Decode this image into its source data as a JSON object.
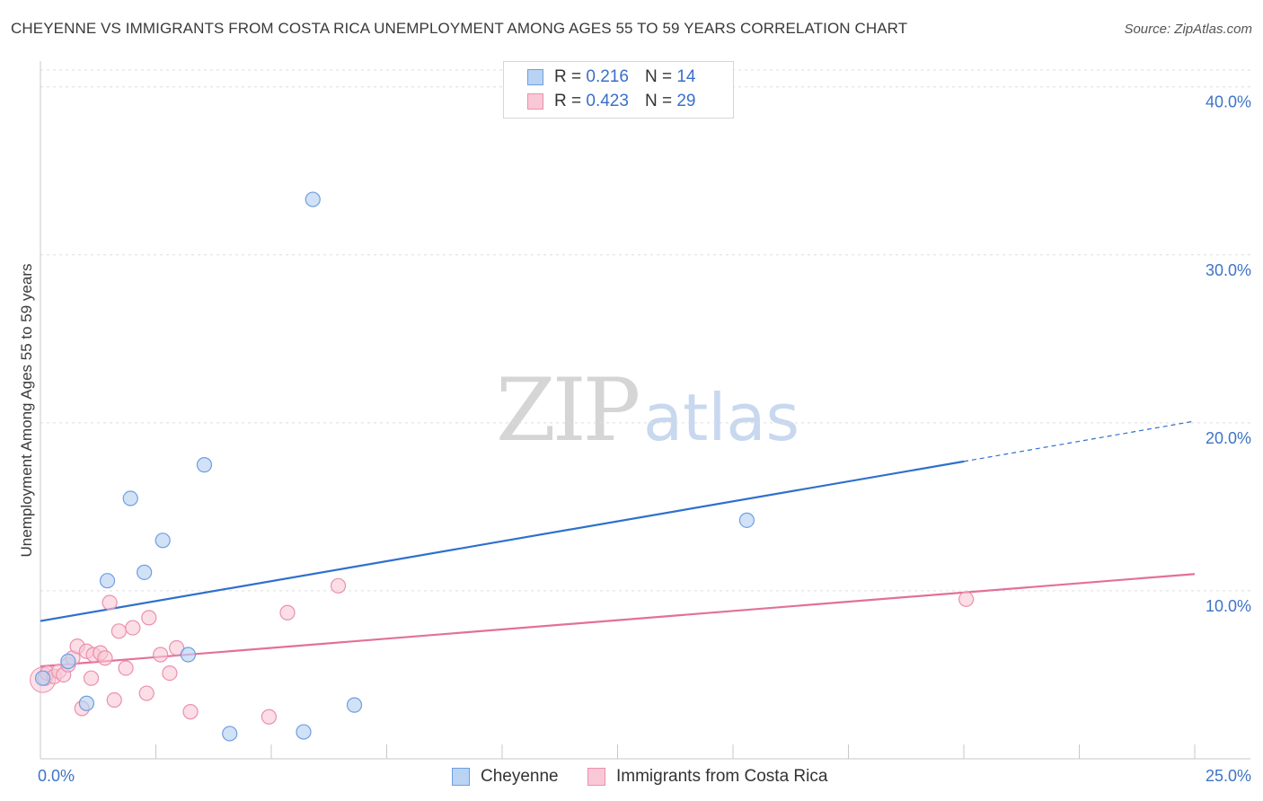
{
  "header": {
    "title": "CHEYENNE VS IMMIGRANTS FROM COSTA RICA UNEMPLOYMENT AMONG AGES 55 TO 59 YEARS CORRELATION CHART",
    "source": "Source: ZipAtlas.com"
  },
  "legend": {
    "r_label": "R =",
    "n_label": "N =",
    "rows": [
      {
        "r": "0.216",
        "n": "14",
        "fill": "#b9d3f3",
        "stroke": "#6f9ee0"
      },
      {
        "r": "0.423",
        "n": "29",
        "fill": "#f9c8d6",
        "stroke": "#ec8fae"
      }
    ]
  },
  "watermark": {
    "zip": "ZIP",
    "atlas": "atlas"
  },
  "colors": {
    "blue_fill": "#b9d3f3",
    "blue_stroke": "#6f9ee0",
    "blue_line": "#2f6fcd",
    "pink_fill": "#f9c8d6",
    "pink_stroke": "#ec8fae",
    "pink_line": "#e2709a",
    "tick_text": "#3d74c6",
    "grid": "#dedede"
  },
  "chart_data": {
    "type": "scatter",
    "title": "CHEYENNE VS IMMIGRANTS FROM COSTA RICA UNEMPLOYMENT AMONG AGES 55 TO 59 YEARS CORRELATION CHART",
    "xlabel": "",
    "ylabel": "Unemployment Among Ages 55 to 59 years",
    "xlim": [
      0,
      25
    ],
    "ylim": [
      0,
      41
    ],
    "x_tick_labels": {
      "min": "0.0%",
      "max": "25.0%"
    },
    "y_ticks": [
      {
        "value": 10,
        "label": "10.0%"
      },
      {
        "value": 20,
        "label": "20.0%"
      },
      {
        "value": 30,
        "label": "30.0%"
      },
      {
        "value": 40,
        "label": "40.0%"
      }
    ],
    "grid": true,
    "legend_position": "top-center",
    "series": [
      {
        "name": "Cheyenne",
        "r": 0.216,
        "n": 14,
        "points": [
          [
            0.05,
            4.8
          ],
          [
            0.6,
            5.8
          ],
          [
            1.0,
            3.3
          ],
          [
            1.45,
            10.6
          ],
          [
            1.95,
            15.5
          ],
          [
            2.25,
            11.1
          ],
          [
            2.65,
            13.0
          ],
          [
            3.2,
            6.2
          ],
          [
            3.55,
            17.5
          ],
          [
            4.1,
            1.5
          ],
          [
            5.7,
            1.6
          ],
          [
            5.9,
            33.3
          ],
          [
            6.8,
            3.2
          ],
          [
            15.3,
            14.2
          ]
        ],
        "trend": {
          "x0": 0,
          "y0": 8.2,
          "x1": 20,
          "y1": 17.7,
          "dash_to_x": 25,
          "dash_to_y": 20.1
        }
      },
      {
        "name": "Immigrants from Costa Rica",
        "r": 0.423,
        "n": 29,
        "points": [
          [
            0.1,
            4.8
          ],
          [
            0.15,
            5.1
          ],
          [
            0.3,
            4.9
          ],
          [
            0.4,
            5.2
          ],
          [
            0.5,
            5.0
          ],
          [
            0.6,
            5.6
          ],
          [
            0.7,
            6.0
          ],
          [
            0.8,
            6.7
          ],
          [
            0.9,
            3.0
          ],
          [
            1.0,
            6.4
          ],
          [
            1.1,
            4.8
          ],
          [
            1.15,
            6.2
          ],
          [
            1.3,
            6.3
          ],
          [
            1.4,
            6.0
          ],
          [
            1.5,
            9.3
          ],
          [
            1.6,
            3.5
          ],
          [
            1.7,
            7.6
          ],
          [
            1.85,
            5.4
          ],
          [
            2.0,
            7.8
          ],
          [
            2.3,
            3.9
          ],
          [
            2.35,
            8.4
          ],
          [
            2.6,
            6.2
          ],
          [
            2.8,
            5.1
          ],
          [
            2.95,
            6.6
          ],
          [
            3.25,
            2.8
          ],
          [
            4.95,
            2.5
          ],
          [
            5.35,
            8.7
          ],
          [
            6.45,
            10.3
          ],
          [
            20.05,
            9.5
          ]
        ],
        "trend": {
          "x0": 0,
          "y0": 5.5,
          "x1": 25,
          "y1": 11.0
        }
      }
    ]
  }
}
